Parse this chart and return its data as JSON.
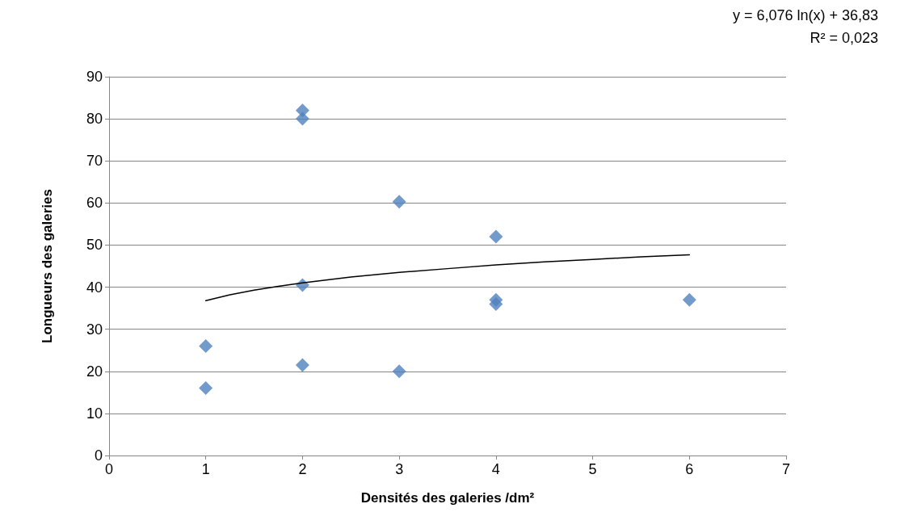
{
  "chart_data": {
    "type": "scatter",
    "xlabel": "Densités des galeries /dm²",
    "ylabel": "Longueurs des galeries",
    "annotations": [
      "y = 6,076 ln(x) + 36,83",
      "R² = 0,023"
    ],
    "series": [
      {
        "color": "#4f81bd",
        "x": [
          1,
          1,
          2,
          2,
          2,
          2,
          3,
          3,
          4,
          4,
          4,
          6
        ],
        "values": [
          26,
          16,
          82,
          80,
          40.5,
          21.5,
          60.3,
          20,
          52,
          37,
          36,
          37
        ]
      },
      {
        "type": "line",
        "color": "#000000",
        "marker": "none",
        "x": [
          1,
          1.25,
          1.5,
          1.75,
          2,
          2.5,
          3,
          3.5,
          4,
          4.5,
          5,
          5.5,
          6
        ],
        "values": [
          36.8,
          38.2,
          39.3,
          40.2,
          41.0,
          42.4,
          43.5,
          44.4,
          45.3,
          46.0,
          46.6,
          47.2,
          47.7
        ]
      }
    ],
    "marker": "diamond",
    "line_style": "solid",
    "xlim": [
      0,
      7
    ],
    "xticks": [
      0,
      1,
      2,
      3,
      4,
      5,
      6,
      7
    ],
    "ylim": [
      0,
      90
    ],
    "yticks": [
      0,
      10,
      20,
      30,
      40,
      50,
      60,
      70,
      80,
      90
    ],
    "grid": "y"
  }
}
